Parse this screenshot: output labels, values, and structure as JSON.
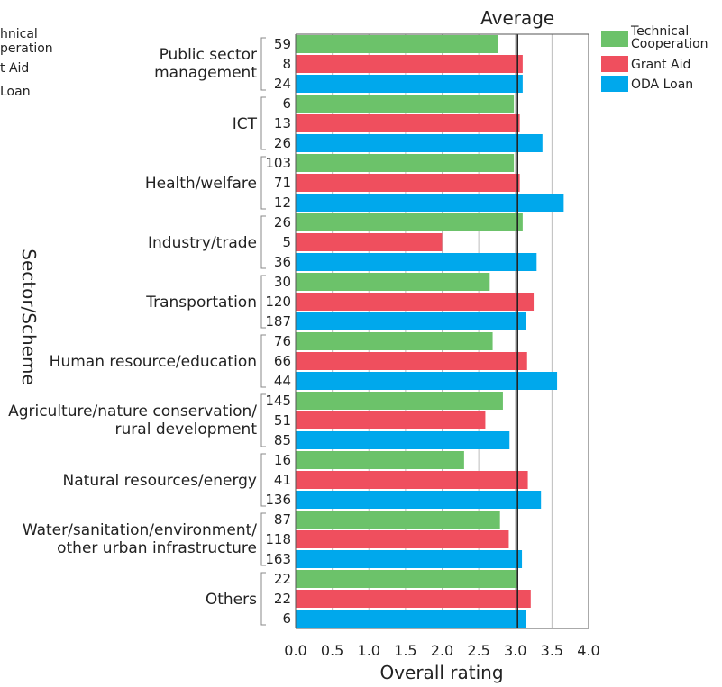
{
  "chart_data": {
    "type": "bar",
    "orientation": "horizontal",
    "xlabel": "Overall rating",
    "ylabel": "Sector/Scheme",
    "xlim": [
      0,
      4
    ],
    "xticks": [
      "0.0",
      "0.5",
      "1.0",
      "1.5",
      "2.0",
      "2.5",
      "3.0",
      "3.5",
      "4.0"
    ],
    "grid": true,
    "legend_position": "top-right",
    "reference_line": {
      "label": "Average",
      "value": 3.03
    },
    "categories": [
      {
        "label_lines": [
          "Public sector",
          "management"
        ]
      },
      {
        "label_lines": [
          "ICT"
        ]
      },
      {
        "label_lines": [
          "Health/welfare"
        ]
      },
      {
        "label_lines": [
          "Industry/trade"
        ]
      },
      {
        "label_lines": [
          "Transportation"
        ]
      },
      {
        "label_lines": [
          "Human resource/education"
        ]
      },
      {
        "label_lines": [
          "Agriculture/nature conservation/",
          "rural development"
        ]
      },
      {
        "label_lines": [
          "Natural resources/energy"
        ]
      },
      {
        "label_lines": [
          "Water/sanitation/environment/",
          "other urban infrastructure"
        ]
      },
      {
        "label_lines": [
          "Others"
        ]
      }
    ],
    "series": [
      {
        "name_lines": [
          "Technical",
          "Cooperation"
        ],
        "color": "#6cc26a",
        "values": [
          2.76,
          2.98,
          2.98,
          3.1,
          2.65,
          2.69,
          2.83,
          2.3,
          2.79,
          3.02
        ],
        "counts": [
          "59",
          "6",
          "103",
          "26",
          "30",
          "76",
          "145",
          "16",
          "87",
          "22"
        ]
      },
      {
        "name_lines": [
          "Grant Aid"
        ],
        "color": "#ef4f5e",
        "values": [
          3.1,
          3.06,
          3.06,
          2.0,
          3.25,
          3.16,
          2.59,
          3.17,
          2.91,
          3.21
        ],
        "counts": [
          "8",
          "13",
          "71",
          "5",
          "120",
          "66",
          "51",
          "41",
          "118",
          "22"
        ]
      },
      {
        "name_lines": [
          "ODA Loan"
        ],
        "color": "#00a8ec",
        "values": [
          3.1,
          3.37,
          3.66,
          3.29,
          3.14,
          3.57,
          2.92,
          3.35,
          3.09,
          3.15
        ],
        "counts": [
          "24",
          "26",
          "12",
          "36",
          "187",
          "44",
          "85",
          "136",
          "163",
          "6"
        ]
      }
    ]
  },
  "clipped_legend": [
    "hnical",
    "peration",
    "t Aid",
    "Loan"
  ]
}
